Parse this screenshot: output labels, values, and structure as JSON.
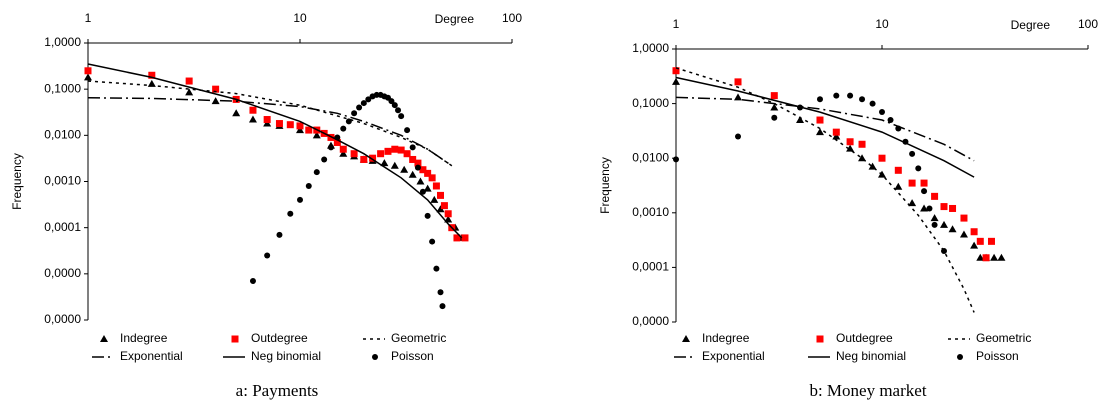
{
  "chart_data": [
    {
      "type": "scatter",
      "caption": "a: Payments",
      "xlabel": "Degree",
      "ylabel": "Frequency",
      "log_x": true,
      "log_y": true,
      "xlim": [
        1,
        100
      ],
      "xticks": [
        1,
        10,
        100
      ],
      "ylim": [
        1e-06,
        1
      ],
      "yticks": [
        {
          "value": 1,
          "label": "1,0000"
        },
        {
          "value": 0.1,
          "label": "0,1000"
        },
        {
          "value": 0.01,
          "label": "0,0100"
        },
        {
          "value": 0.001,
          "label": "0,0010"
        },
        {
          "value": 0.0001,
          "label": "0,0001"
        },
        {
          "value": 1e-05,
          "label": "0,0000"
        },
        {
          "value": 1e-06,
          "label": "0,0000"
        }
      ],
      "series": [
        {
          "name": "Indegree",
          "color": "#000000",
          "marker": "triangle",
          "x": [
            1,
            2,
            3,
            4,
            5,
            6,
            7,
            8,
            10,
            12,
            14,
            16,
            18,
            20,
            22,
            25,
            28,
            31,
            34,
            37,
            40,
            43,
            46,
            50,
            54,
            58
          ],
          "values": [
            0.18,
            0.13,
            0.085,
            0.055,
            0.03,
            0.022,
            0.018,
            0.016,
            0.013,
            0.01,
            0.006,
            0.004,
            0.0035,
            0.003,
            0.0028,
            0.0025,
            0.0022,
            0.0018,
            0.0014,
            0.001,
            0.0007,
            0.0004,
            0.00025,
            0.00015,
            0.0001,
            6e-05
          ]
        },
        {
          "name": "Outdegree",
          "color": "#ff0000",
          "marker": "square",
          "x": [
            1,
            2,
            3,
            4,
            5,
            6,
            7,
            8,
            9,
            10,
            11,
            12,
            13,
            14,
            15,
            16,
            18,
            20,
            22,
            24,
            26,
            28,
            30,
            32,
            34,
            36,
            38,
            40,
            42,
            44,
            46,
            48,
            50,
            52,
            55,
            60
          ],
          "values": [
            0.25,
            0.2,
            0.15,
            0.1,
            0.06,
            0.035,
            0.022,
            0.018,
            0.017,
            0.016,
            0.013,
            0.013,
            0.011,
            0.009,
            0.007,
            0.005,
            0.004,
            0.003,
            0.0032,
            0.004,
            0.0045,
            0.005,
            0.0048,
            0.004,
            0.003,
            0.0025,
            0.0018,
            0.0015,
            0.0012,
            0.0008,
            0.0005,
            0.0003,
            0.0002,
            0.0001,
            6e-05,
            6e-05
          ]
        },
        {
          "name": "Geometric",
          "color": "#000000",
          "dash": "3,4",
          "x": [
            1,
            2,
            5,
            10,
            20,
            30,
            40,
            52
          ],
          "values": [
            0.15,
            0.12,
            0.08,
            0.045,
            0.018,
            0.009,
            0.005,
            0.0022
          ]
        },
        {
          "name": "Exponential",
          "color": "#000000",
          "dash": "12,4,2,4",
          "x": [
            1,
            2,
            5,
            10,
            15,
            20,
            30,
            40,
            52
          ],
          "values": [
            0.065,
            0.063,
            0.055,
            0.042,
            0.03,
            0.02,
            0.01,
            0.005,
            0.0022
          ]
        },
        {
          "name": "Neg binomial",
          "color": "#000000",
          "dash": "none",
          "x": [
            1,
            2,
            5,
            10,
            15,
            20,
            30,
            40,
            50,
            58
          ],
          "values": [
            0.35,
            0.18,
            0.06,
            0.02,
            0.008,
            0.004,
            0.0012,
            0.0004,
            0.00012,
            6e-05
          ]
        },
        {
          "name": "Poisson",
          "color": "#000000",
          "marker": "circle",
          "x": [
            6,
            7,
            8,
            9,
            10,
            11,
            12,
            13,
            14,
            15,
            16,
            17,
            18,
            19,
            20,
            21,
            22,
            23,
            24,
            25,
            26,
            27,
            28,
            29,
            30,
            32,
            34,
            36,
            38,
            40,
            42,
            44,
            46,
            47
          ],
          "values": [
            7e-06,
            2.5e-05,
            7e-05,
            0.0002,
            0.0004,
            0.0008,
            0.0016,
            0.003,
            0.0055,
            0.009,
            0.014,
            0.02,
            0.03,
            0.04,
            0.05,
            0.06,
            0.07,
            0.075,
            0.075,
            0.07,
            0.065,
            0.055,
            0.045,
            0.035,
            0.026,
            0.013,
            0.0055,
            0.002,
            0.0006,
            0.00018,
            5e-05,
            1.3e-05,
            4e-06,
            2e-06
          ]
        }
      ]
    },
    {
      "type": "scatter",
      "caption": "b: Money market",
      "xlabel": "Degree",
      "ylabel": "Frequency",
      "log_x": true,
      "log_y": true,
      "xlim": [
        1,
        100
      ],
      "xticks": [
        1,
        10,
        100
      ],
      "ylim": [
        1e-05,
        1
      ],
      "yticks": [
        {
          "value": 1,
          "label": "1,0000"
        },
        {
          "value": 0.1,
          "label": "0,1000"
        },
        {
          "value": 0.01,
          "label": "0,0100"
        },
        {
          "value": 0.001,
          "label": "0,0010"
        },
        {
          "value": 0.0001,
          "label": "0,0001"
        },
        {
          "value": 1e-05,
          "label": "0,0000"
        }
      ],
      "series": [
        {
          "name": "Indegree",
          "color": "#000000",
          "marker": "triangle",
          "x": [
            1,
            2,
            3,
            4,
            5,
            6,
            7,
            8,
            9,
            10,
            12,
            14,
            16,
            18,
            20,
            22,
            25,
            28,
            30,
            32,
            35,
            38
          ],
          "values": [
            0.25,
            0.13,
            0.085,
            0.05,
            0.03,
            0.025,
            0.015,
            0.01,
            0.007,
            0.005,
            0.003,
            0.0015,
            0.0012,
            0.0008,
            0.0006,
            0.0005,
            0.0004,
            0.00025,
            0.00015,
            0.00015,
            0.00015,
            0.00015
          ]
        },
        {
          "name": "Outdegree",
          "color": "#ff0000",
          "marker": "square",
          "x": [
            1,
            2,
            3,
            5,
            6,
            7,
            8,
            10,
            12,
            14,
            16,
            18,
            20,
            22,
            25,
            28,
            30,
            32,
            34
          ],
          "values": [
            0.4,
            0.25,
            0.14,
            0.05,
            0.03,
            0.02,
            0.018,
            0.01,
            0.006,
            0.0035,
            0.0035,
            0.002,
            0.0013,
            0.0012,
            0.0008,
            0.00045,
            0.0003,
            0.00015,
            0.0003
          ]
        },
        {
          "name": "Geometric",
          "color": "#000000",
          "dash": "3,4",
          "x": [
            1,
            2,
            3,
            5,
            8,
            10,
            15,
            20,
            25,
            28
          ],
          "values": [
            0.45,
            0.2,
            0.1,
            0.035,
            0.01,
            0.005,
            0.0009,
            0.0002,
            4e-05,
            1.5e-05
          ]
        },
        {
          "name": "Exponential",
          "color": "#000000",
          "dash": "12,4,2,4",
          "x": [
            1,
            2,
            5,
            10,
            20,
            28
          ],
          "values": [
            0.13,
            0.12,
            0.08,
            0.05,
            0.018,
            0.009
          ]
        },
        {
          "name": "Neg binomial",
          "color": "#000000",
          "dash": "none",
          "x": [
            1,
            2,
            5,
            10,
            20,
            28
          ],
          "values": [
            0.3,
            0.17,
            0.07,
            0.03,
            0.009,
            0.0045
          ]
        },
        {
          "name": "Poisson",
          "color": "#000000",
          "marker": "circle",
          "x": [
            1,
            2,
            3,
            4,
            5,
            6,
            7,
            8,
            9,
            10,
            11,
            12,
            13,
            14,
            15,
            16,
            17,
            18,
            20
          ],
          "values": [
            0.0095,
            0.025,
            0.055,
            0.085,
            0.12,
            0.14,
            0.14,
            0.12,
            0.1,
            0.07,
            0.05,
            0.035,
            0.02,
            0.012,
            0.0065,
            0.0025,
            0.0012,
            0.0006,
            0.0002
          ]
        }
      ]
    }
  ]
}
